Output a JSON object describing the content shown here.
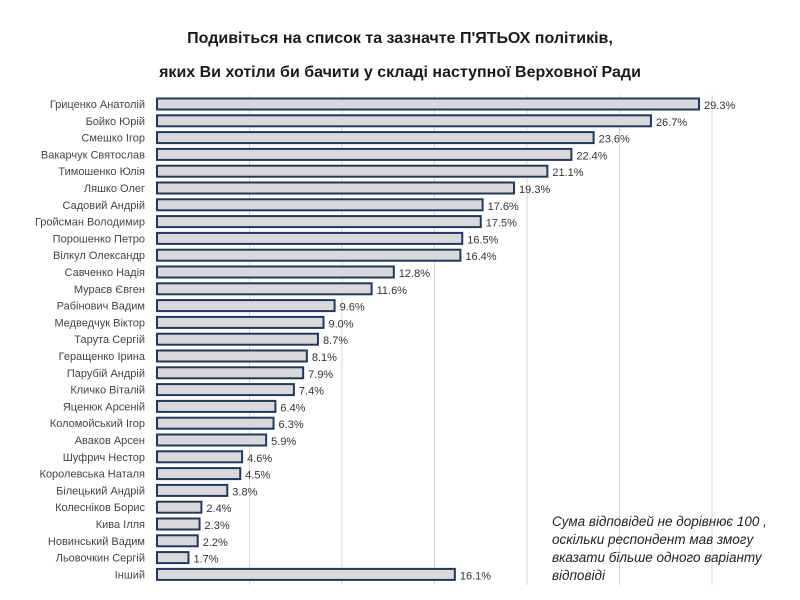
{
  "chart_data": {
    "type": "bar",
    "orientation": "horizontal",
    "title": "Подивіться на список та зазначте П'ЯТЬОХ політиків,",
    "subtitle": "яких Ви хотіли би бачити у складі наступної Верховної Ради",
    "categories": [
      "Гриценко Анатолій",
      "Бойко Юрій",
      "Смешко Ігор",
      "Вакарчук Святослав",
      "Тимошенко Юлія",
      "Ляшко Олег",
      "Садовий Андрій",
      "Гройсман Володимир",
      "Порошенко Петро",
      "Вілкул Олександр",
      "Савченко Надія",
      "Мураєв Євген",
      "Рабінович Вадим",
      "Медведчук Віктор",
      "Тарута Сергій",
      "Геращенко Ірина",
      "Парубій Андрій",
      "Кличко Віталій",
      "Яценюк Арсеній",
      "Коломойський Ігор",
      "Аваков Арсен",
      "Шуфрич Нестор",
      "Королевська Наталя",
      "Білецький Андрій",
      "Колесніков Борис",
      "Кива Ілля",
      "Новинський Вадим",
      "Льовочкин Сергій",
      "Інший"
    ],
    "values": [
      29.3,
      26.7,
      23.6,
      22.4,
      21.1,
      19.3,
      17.6,
      17.5,
      16.5,
      16.4,
      12.8,
      11.6,
      9.6,
      9.0,
      8.7,
      8.1,
      7.9,
      7.4,
      6.4,
      6.3,
      5.9,
      4.6,
      4.5,
      3.8,
      2.4,
      2.3,
      2.2,
      1.7,
      16.1
    ],
    "data_labels": [
      "29.3%",
      "26.7%",
      "23.6%",
      "22.4%",
      "21.1%",
      "19.3%",
      "17.6%",
      "17.5%",
      "16.5%",
      "16.4%",
      "12.8%",
      "11.6%",
      "9.6%",
      "9.0%",
      "8.7%",
      "8.1%",
      "7.9%",
      "7.4%",
      "6.4%",
      "6.3%",
      "5.9%",
      "4.6%",
      "4.5%",
      "3.8%",
      "2.4%",
      "2.3%",
      "2.2%",
      "1.7%",
      "16.1%"
    ],
    "xlim": [
      0,
      30
    ],
    "grid": true,
    "annotation": "Сума відповідей не дорівнює 100 , оскільки респондент мав змогу вказати більше одного варіанту відповіді",
    "colors": {
      "bar_fill": "#d9d9d9",
      "bar_edge": "#1f3864",
      "grid": "#d9d9d9"
    }
  }
}
